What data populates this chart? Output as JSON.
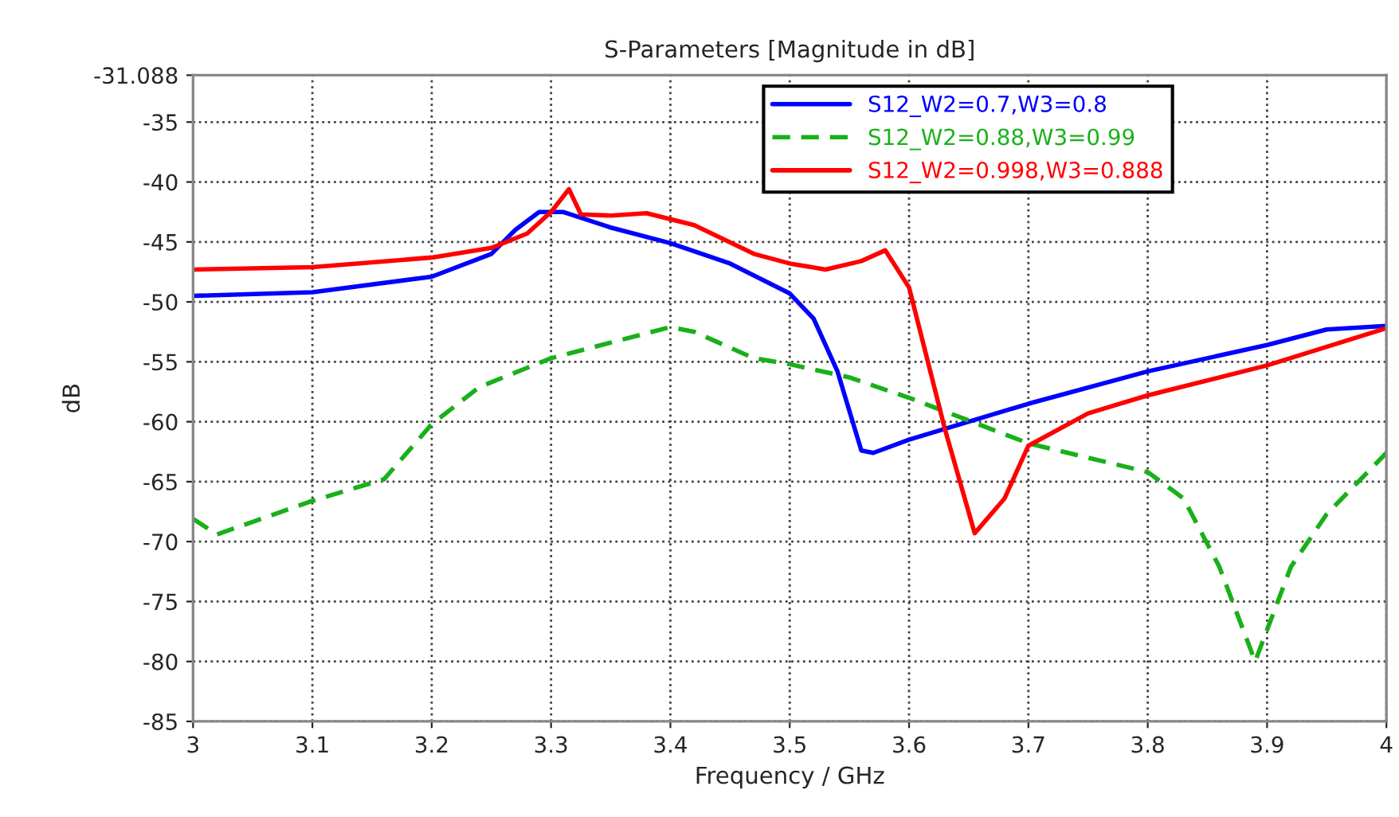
{
  "chart_data": {
    "type": "line",
    "title": "S-Parameters [Magnitude in dB]",
    "xlabel": "Frequency / GHz",
    "ylabel": "dB",
    "xlim": [
      3,
      4
    ],
    "xticks": [
      3,
      3.1,
      3.2,
      3.3,
      3.4,
      3.5,
      3.6,
      3.7,
      3.8,
      3.9,
      4
    ],
    "ylim": [
      -85,
      -31.088
    ],
    "yticks": [
      -85,
      -80,
      -75,
      -70,
      -65,
      -60,
      -55,
      -50,
      -45,
      -40,
      -35,
      -31.088
    ],
    "grid": true,
    "legend": "top right",
    "series": [
      {
        "name": "S12_W2=0.7,W3=0.8",
        "color": "#0000ff",
        "line_style": "solid",
        "x": [
          3.0,
          3.1,
          3.2,
          3.25,
          3.27,
          3.29,
          3.31,
          3.35,
          3.4,
          3.45,
          3.5,
          3.52,
          3.54,
          3.56,
          3.57,
          3.6,
          3.7,
          3.8,
          3.9,
          3.95,
          4.0
        ],
        "values": [
          -49.5,
          -49.2,
          -47.9,
          -46,
          -44,
          -42.5,
          -42.5,
          -43.8,
          -45.1,
          -46.8,
          -49.3,
          -51.4,
          -55.8,
          -62.4,
          -62.6,
          -61.5,
          -58.5,
          -55.8,
          -53.6,
          -52.3,
          -52
        ]
      },
      {
        "name": "S12_W2=0.88,W3=0.99",
        "color": "#19b019",
        "line_style": "dashed",
        "x": [
          3.0,
          3.02,
          3.1,
          3.16,
          3.2,
          3.24,
          3.3,
          3.4,
          3.42,
          3.47,
          3.5,
          3.55,
          3.6,
          3.7,
          3.8,
          3.83,
          3.86,
          3.89,
          3.92,
          3.95,
          4.0
        ],
        "values": [
          -68.1,
          -69.4,
          -66.6,
          -64.8,
          -60.2,
          -57.1,
          -54.7,
          -52.1,
          -52.5,
          -54.7,
          -55.2,
          -56.3,
          -58,
          -61.8,
          -64.2,
          -66.4,
          -72.1,
          -80,
          -72.1,
          -67.7,
          -62.6
        ]
      },
      {
        "name": "S12_W2=0.998,W3=0.888",
        "color": "#ff0000",
        "line_style": "solid",
        "x": [
          3.0,
          3.1,
          3.2,
          3.25,
          3.28,
          3.3,
          3.315,
          3.325,
          3.35,
          3.38,
          3.42,
          3.47,
          3.5,
          3.53,
          3.56,
          3.58,
          3.6,
          3.63,
          3.655,
          3.68,
          3.7,
          3.75,
          3.8,
          3.9,
          4.0
        ],
        "values": [
          -47.3,
          -47.1,
          -46.3,
          -45.5,
          -44.3,
          -42.5,
          -40.6,
          -42.7,
          -42.8,
          -42.6,
          -43.6,
          -46,
          -46.8,
          -47.3,
          -46.6,
          -45.7,
          -48.8,
          -60.6,
          -69.3,
          -66.4,
          -62,
          -59.3,
          -57.8,
          -55.3,
          -52.2
        ]
      }
    ]
  }
}
